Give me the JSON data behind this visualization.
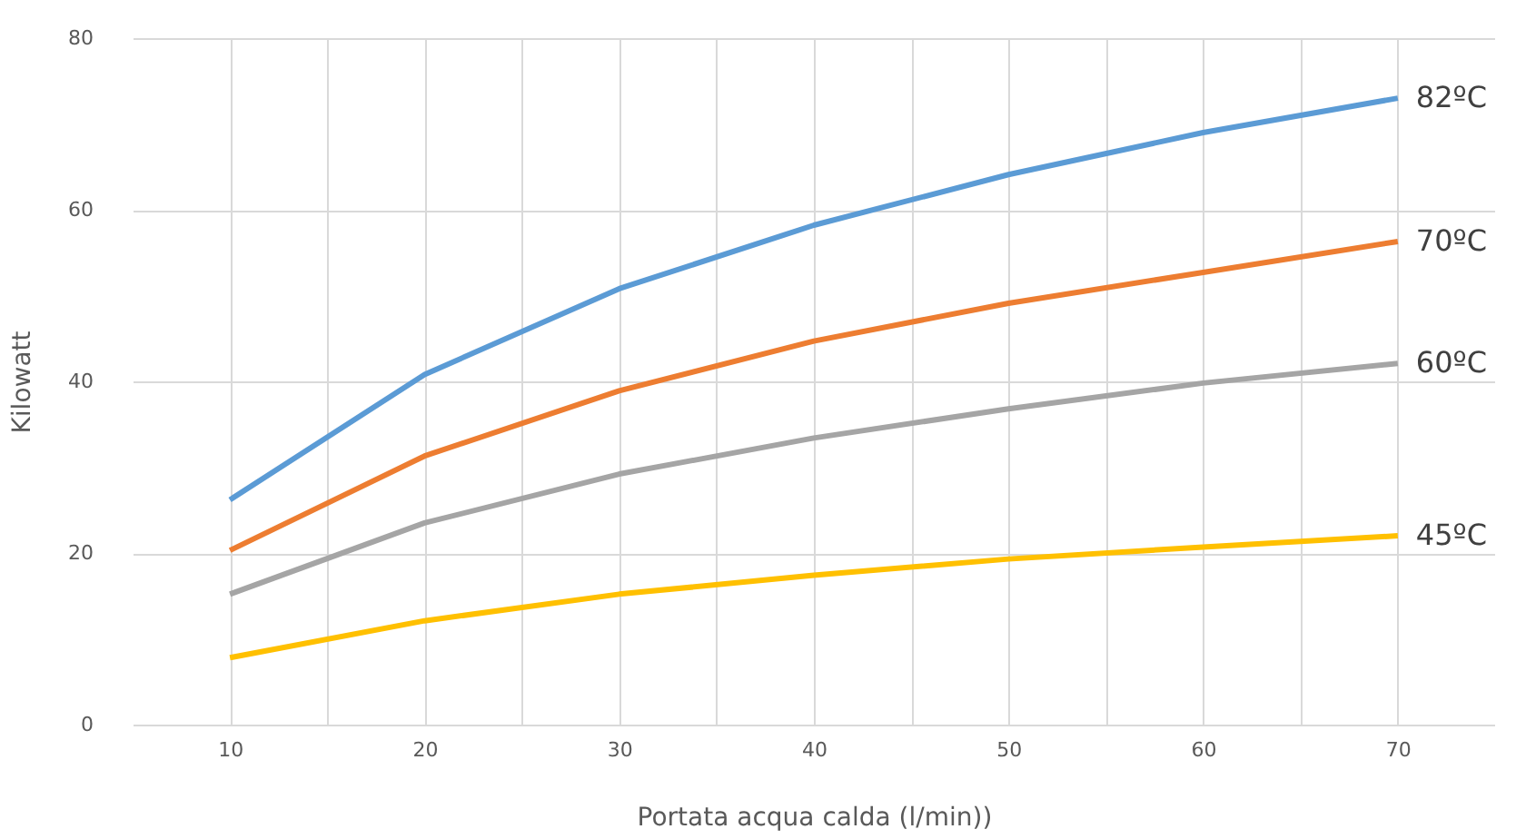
{
  "chart_data": {
    "type": "line",
    "xlabel": "Portata acqua calda (l/min))",
    "ylabel": "Kilowatt",
    "x": [
      10,
      20,
      30,
      40,
      50,
      60,
      70
    ],
    "series": [
      {
        "name": "82ºC",
        "color": "#5b9bd5",
        "values": [
          26.2,
          40.8,
          50.8,
          58.2,
          64.1,
          69,
          73
        ]
      },
      {
        "name": "70ºC",
        "color": "#ed7d31",
        "values": [
          20.3,
          31.3,
          38.9,
          44.7,
          49.1,
          52.7,
          56.3
        ]
      },
      {
        "name": "60ºC",
        "color": "#a5a5a5",
        "values": [
          15.2,
          23.5,
          29.2,
          33.4,
          36.8,
          39.8,
          42.1
        ]
      },
      {
        "name": "45ºC",
        "color": "#ffc000",
        "values": [
          7.8,
          12.1,
          15.2,
          17.4,
          19.3,
          20.7,
          22
        ]
      }
    ],
    "xlim": [
      5,
      75
    ],
    "xticks": [
      10,
      {
        "value": 15,
        "label": null
      },
      20,
      {
        "value": 25,
        "label": null
      },
      30,
      {
        "value": 35,
        "label": null
      },
      40,
      {
        "value": 45,
        "label": null
      },
      50,
      {
        "value": 55,
        "label": null
      },
      60,
      {
        "value": 65,
        "label": null
      },
      70
    ],
    "ylim": [
      0,
      80
    ],
    "yticks": [
      0,
      20,
      40,
      60,
      80
    ],
    "grid": true,
    "legend": false,
    "marker": "none",
    "line_style": "solid"
  }
}
